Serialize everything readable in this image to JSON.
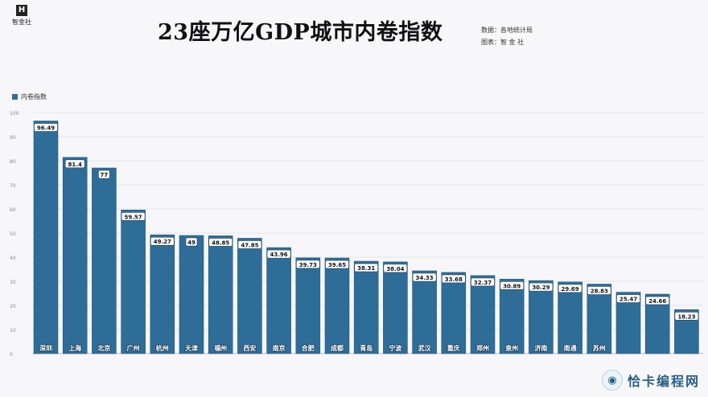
{
  "logo": {
    "mark": "H",
    "name": "智金社"
  },
  "header": {
    "title": "23座万亿GDP城市内卷指数",
    "source": "数据：各地统计局",
    "credit": "图表：智 金 社"
  },
  "watermark": {
    "icon": "owl-icon",
    "text": "恰卡编程网"
  },
  "colors": {
    "bar": "#2f6d99",
    "bar_edge": "#255a80",
    "grid": "#e4e4ea",
    "background": "#f7f7fa"
  },
  "chart_data": {
    "type": "bar",
    "legend": "内卷指数",
    "legend_position": "top-left",
    "grid": true,
    "ylim": [
      0,
      100
    ],
    "yticks": [
      0,
      10,
      20,
      30,
      40,
      50,
      60,
      70,
      80,
      90,
      100
    ],
    "categories": [
      "深圳",
      "上海",
      "北京",
      "广州",
      "杭州",
      "天津",
      "福州",
      "西安",
      "南京",
      "合肥",
      "成都",
      "青岛",
      "宁波",
      "武汉",
      "重庆",
      "郑州",
      "泉州",
      "济南",
      "南通",
      "苏州",
      "",
      "",
      ""
    ],
    "values": [
      96.49,
      81.4,
      77,
      59.57,
      49.27,
      49,
      48.85,
      47.85,
      43.96,
      39.73,
      39.65,
      38.31,
      38.04,
      34.33,
      33.68,
      32.37,
      30.89,
      30.29,
      29.69,
      28.83,
      25.47,
      24.66,
      18.23
    ],
    "labels": [
      "96.49",
      "81.4",
      "77",
      "59.57",
      "49.27",
      "49",
      "48.85",
      "47.85",
      "43.96",
      "39.73",
      "39.65",
      "38.31",
      "38.04",
      "34.33",
      "33.68",
      "32.37",
      "30.89",
      "30.29",
      "29.69",
      "28.83",
      "25.47",
      "24.66",
      "18.23"
    ]
  }
}
